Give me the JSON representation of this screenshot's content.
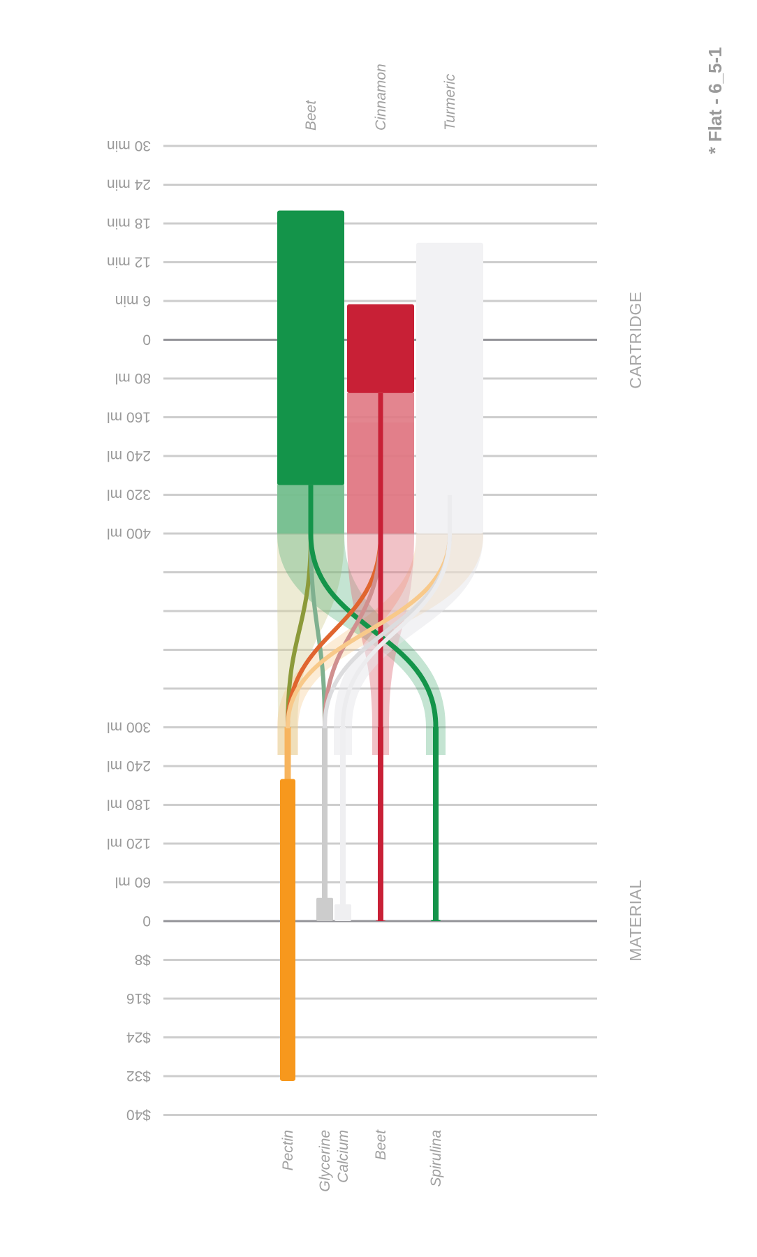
{
  "chart_data": {
    "type": "bar",
    "version_label": "* Flat - 6_5-1",
    "sections": {
      "cartridge": "CARTRIDGE",
      "material": "MATERIAL"
    },
    "grid": true,
    "tick_labels": [
      "30 min",
      "24 min",
      "18 min",
      "12 min",
      "6 min",
      "0",
      "80 ml",
      "160 ml",
      "240 ml",
      "320 ml",
      "400 ml",
      "",
      "",
      "",
      "",
      "300 ml",
      "240 ml",
      "180 ml",
      "120 ml",
      "60 ml",
      "0",
      "$8",
      "$16",
      "$24",
      "$32",
      "$40"
    ],
    "cartridge": [
      {
        "name": "Beet",
        "time_min": 20,
        "volume_ml": 300,
        "range_ml": 400,
        "color": "#14944a",
        "light": "#73bf8f"
      },
      {
        "name": "Cinnamon",
        "time_min": 5.5,
        "volume_ml": 110,
        "range_ml": 400,
        "color": "#c82036",
        "light": "#e07883"
      },
      {
        "name": "Turmeric",
        "time_min": 15,
        "volume_ml": 400,
        "range_ml": 400,
        "color": "#f2f2f4",
        "light": "#f4f4f6"
      }
    ],
    "material": [
      {
        "name": "Pectin",
        "volume_ml": 220,
        "cost_usd": 33,
        "color": "#f7981d"
      },
      {
        "name": "Glycerine",
        "volume_ml": 36,
        "cost_usd": 0,
        "color": "#cccccc"
      },
      {
        "name": "Calcium",
        "volume_ml": 26,
        "cost_usd": 0,
        "color": "#efeff1"
      },
      {
        "name": "Beet",
        "volume_ml": 1,
        "cost_usd": 0,
        "color": "#c82036"
      },
      {
        "name": "Spirulina",
        "volume_ml": 2,
        "cost_usd": 0,
        "color": "#14944a"
      }
    ],
    "flows": [
      {
        "from": "Beet",
        "to": "Pectin",
        "color": "#8c9a3a"
      },
      {
        "from": "Beet",
        "to": "Glycerine",
        "color": "#7fb08f"
      },
      {
        "from": "Beet",
        "to": "Spirulina",
        "color": "#14944a"
      },
      {
        "from": "Cinnamon",
        "to": "Pectin",
        "color": "#e0652f"
      },
      {
        "from": "Cinnamon",
        "to": "Glycerine",
        "color": "#d0908f"
      },
      {
        "from": "Cinnamon",
        "to": "Beet",
        "color": "#c82036"
      },
      {
        "from": "Turmeric",
        "to": "Pectin",
        "color": "#f8c98a"
      },
      {
        "from": "Turmeric",
        "to": "Glycerine",
        "color": "#dcdcde"
      },
      {
        "from": "Turmeric",
        "to": "Calcium",
        "color": "#ececee"
      }
    ]
  }
}
